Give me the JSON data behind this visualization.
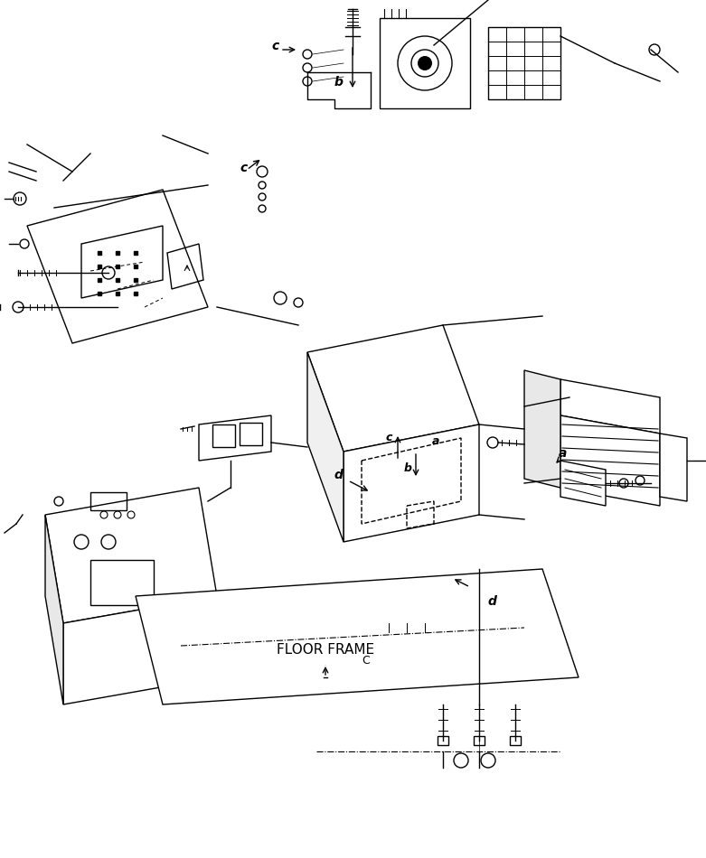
{
  "background_color": "#ffffff",
  "line_color": "#000000",
  "fig_width": 7.81,
  "fig_height": 9.5,
  "dpi": 100,
  "floor_frame_label": "FLOOR FRAME",
  "labels": {
    "a_top_label": "a",
    "b_top_label": "b",
    "c_top_label": "c",
    "a_mid_label": "a",
    "b_mid_label": "b",
    "c_mid_label": "c",
    "d_mid_label": "d",
    "d_bot_label": "d"
  }
}
